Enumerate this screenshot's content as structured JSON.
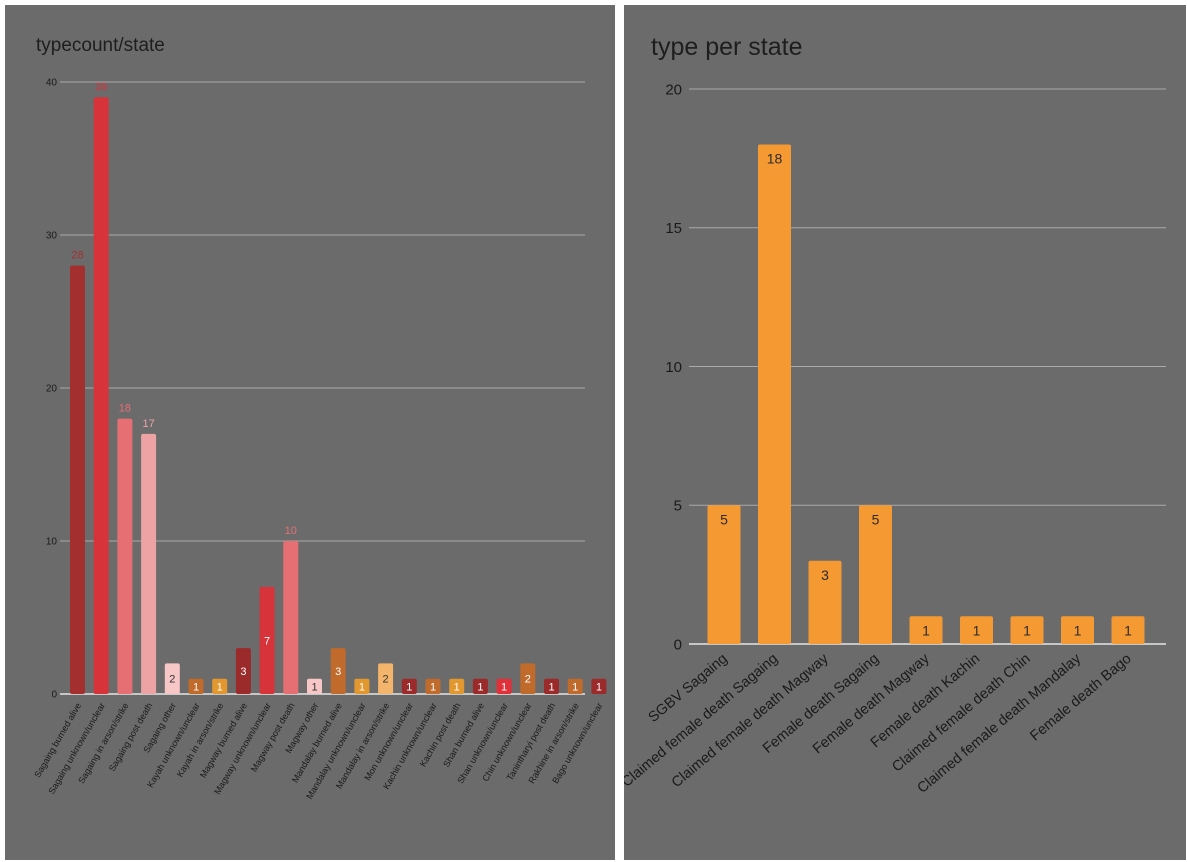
{
  "chart_data": [
    {
      "type": "bar",
      "title": "typecount/state",
      "xlabel": "",
      "ylabel": "",
      "ylim": [
        0,
        40
      ],
      "yticks": [
        0,
        10,
        20,
        30,
        40
      ],
      "grid": true,
      "legend": "none",
      "categories": [
        "Sagaing burned alive",
        "Sagaing unknown/unclear",
        "Sagaing in arson/strike",
        "Sagaing post death",
        "Sagaing other",
        "Kayah unknown/unclear",
        "Kayah in arson/strike",
        "Magway burned alive",
        "Magway unknown/unclear",
        "Magway post death",
        "Magway other",
        "Mandalay burned alive",
        "Mandalay unknown/unclear",
        "Mandalay in arson/strike",
        "Mon unknown/unclear",
        "Kachin unknown/unclear",
        "Kachin post death",
        "Shan burned alive",
        "Shan unknown/unclear",
        "Chin unknown/unclear",
        "Tanintharyi post death",
        "Rakhine in arson/strike",
        "Bago unknown/unclear"
      ],
      "values": [
        28,
        39,
        18,
        17,
        2,
        1,
        1,
        3,
        7,
        10,
        1,
        3,
        1,
        2,
        1,
        1,
        1,
        1,
        1,
        2,
        1,
        1,
        1
      ],
      "colors": [
        "#a3302f",
        "#d7333a",
        "#e56f73",
        "#eda3a3",
        "#f7c6c6",
        "#c06a2b",
        "#e2982f",
        "#9b2a2b",
        "#d7333a",
        "#e56f73",
        "#f7c6c6",
        "#c06a2b",
        "#e2982f",
        "#f3b46b",
        "#9b2a2b",
        "#c06a2b",
        "#e2982f",
        "#9b2a2b",
        "#e0313a",
        "#c06a2b",
        "#9b2a2b",
        "#c06a2b",
        "#9b2a2b"
      ]
    },
    {
      "type": "bar",
      "title": "type per state",
      "xlabel": "",
      "ylabel": "",
      "ylim": [
        0,
        20
      ],
      "yticks": [
        0,
        5,
        10,
        15,
        20
      ],
      "grid": true,
      "legend": "none",
      "bar_color": "#f59a33",
      "categories": [
        "SGBV Sagaing",
        "Claimed female death Sagaing",
        "Claimed female death Magway",
        "Female death Sagaing",
        "Female death Magway",
        "Female death Kachin",
        "Claimed female death Chin",
        "Claimed female death Mandalay",
        "Female death Bago"
      ],
      "values": [
        5,
        18,
        3,
        5,
        1,
        1,
        1,
        1,
        1
      ]
    }
  ]
}
